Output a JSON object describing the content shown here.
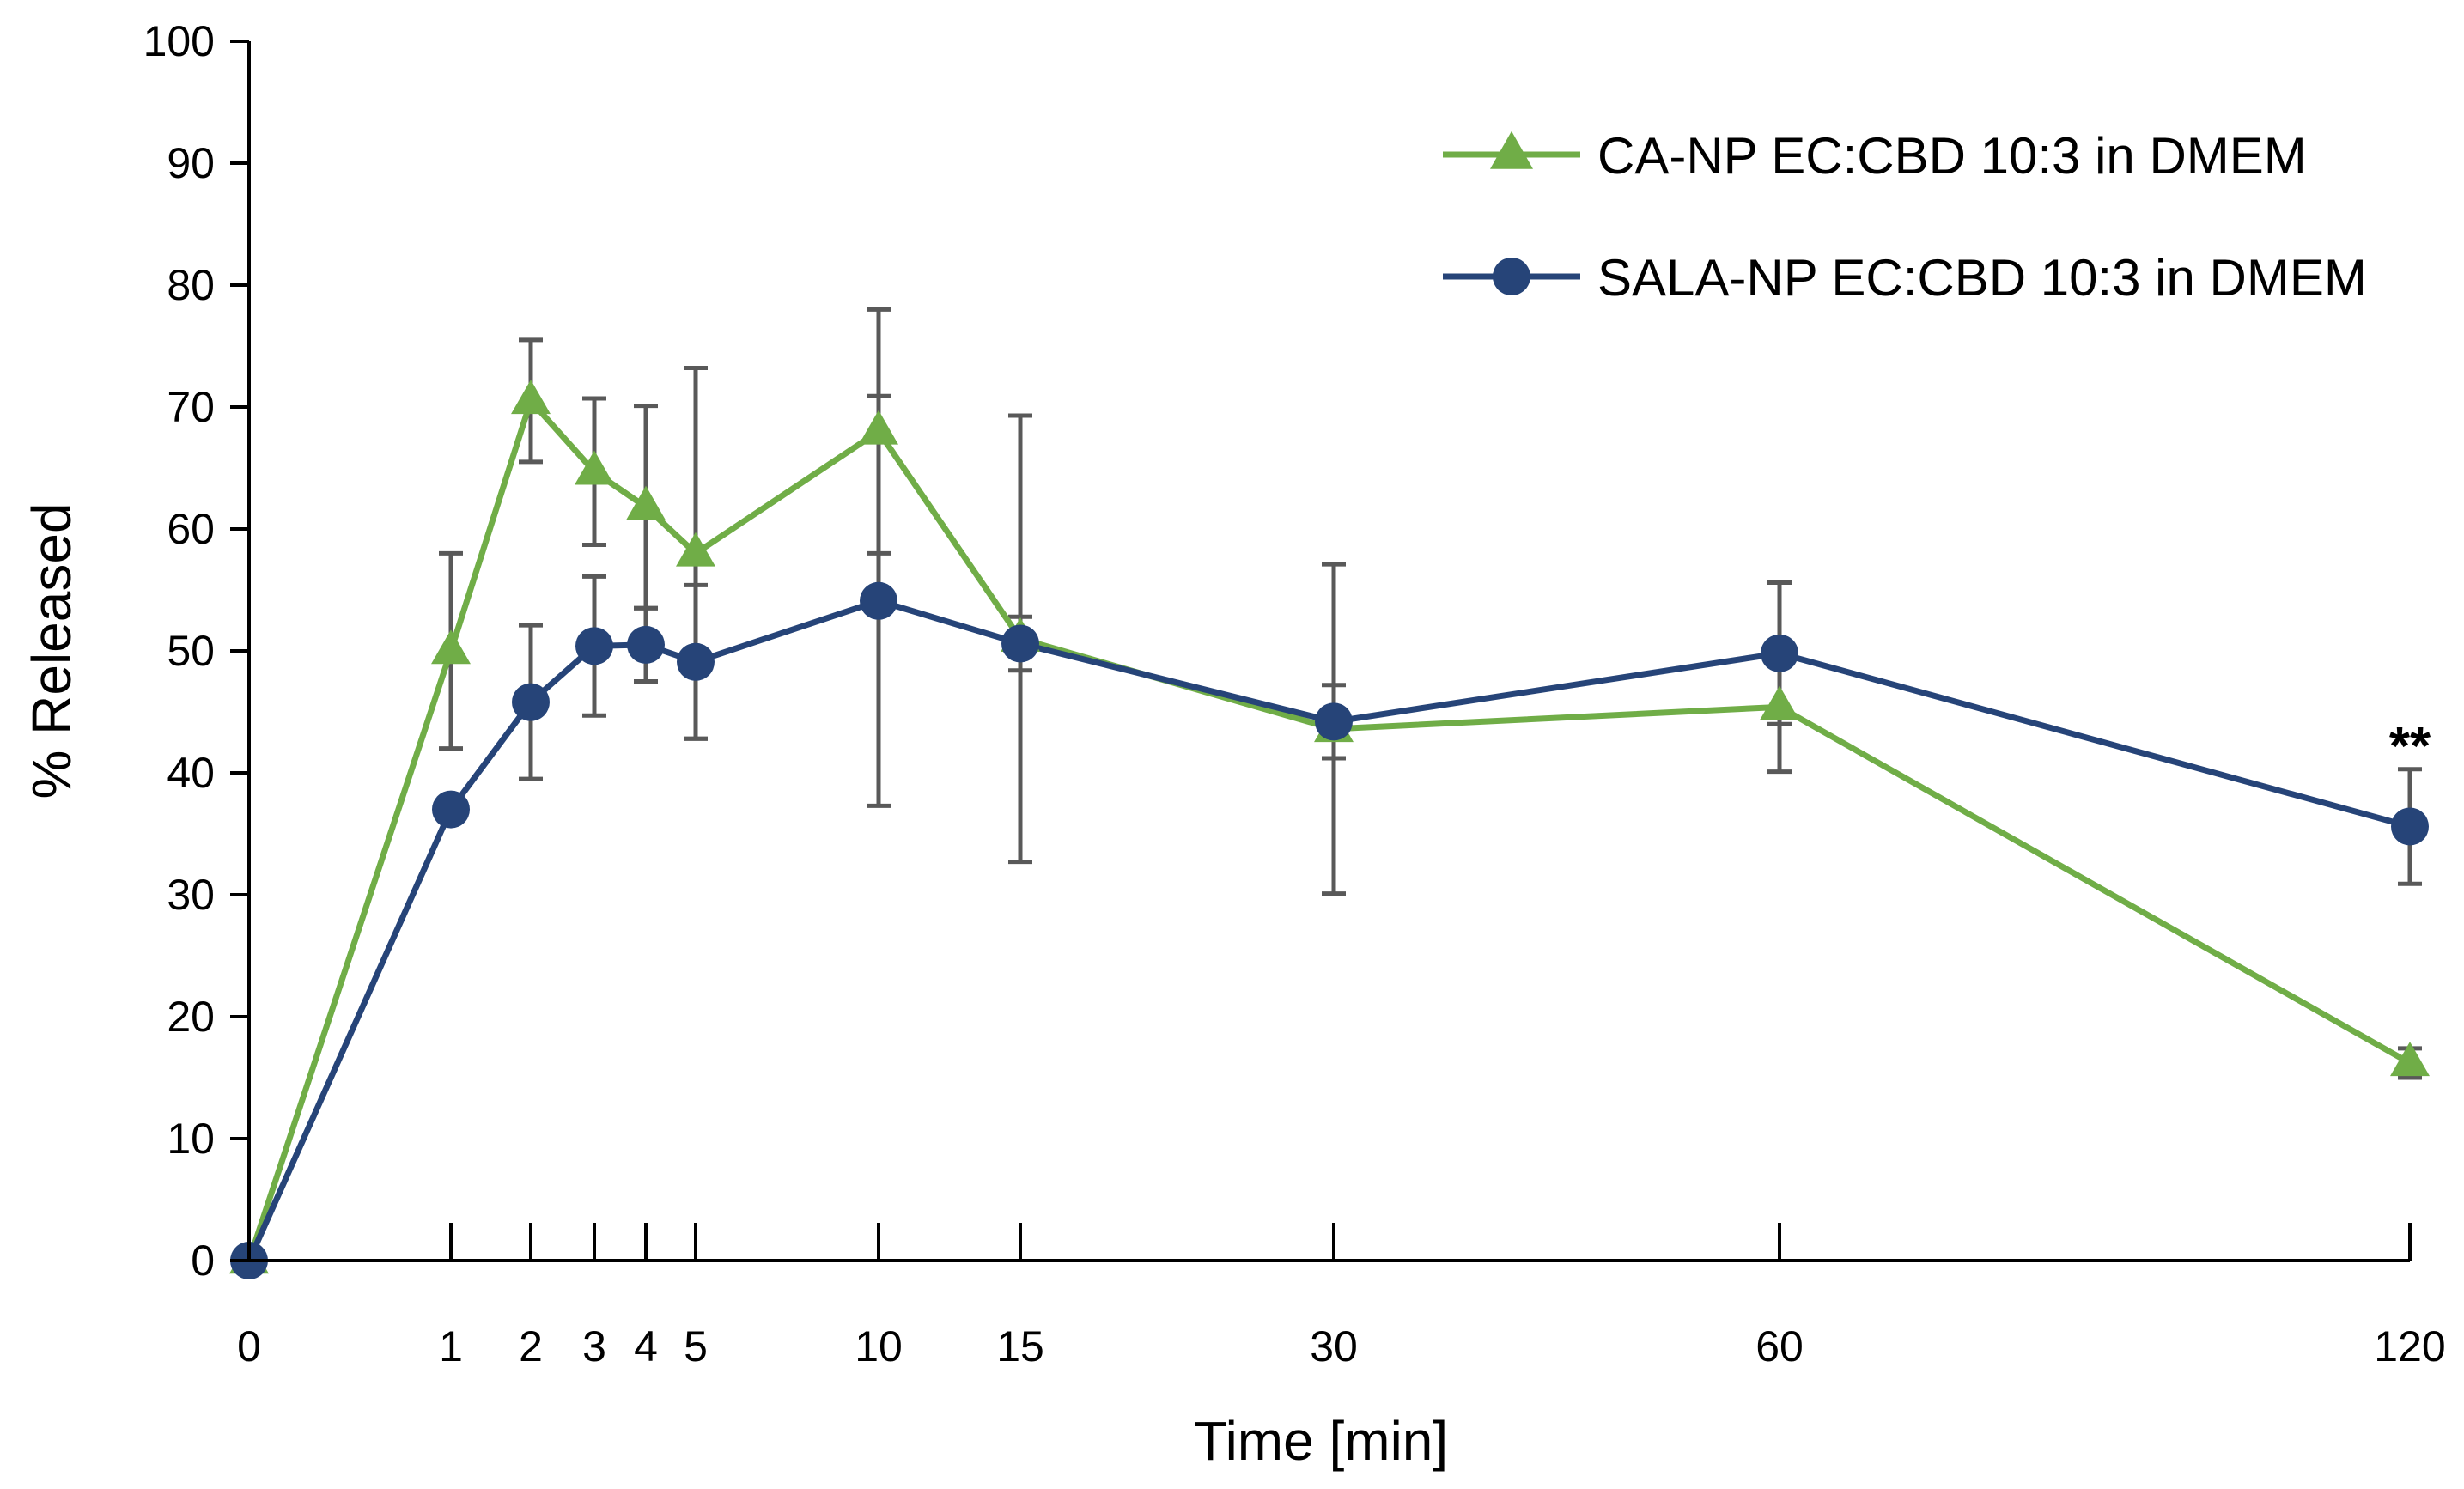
{
  "colors": {
    "ca_np": "#70AD47",
    "sala_np": "#264478",
    "error_bars": "#595959",
    "axis": "#000000"
  },
  "chart_data": {
    "type": "line",
    "title": "",
    "xlabel": "Time [min]",
    "ylabel": "% Released",
    "ylim": [
      0,
      100
    ],
    "yticks": [
      "0",
      "10",
      "20",
      "30",
      "40",
      "50",
      "60",
      "70",
      "80",
      "90",
      "100"
    ],
    "categories": [
      "0",
      "1",
      "2",
      "3",
      "4",
      "5",
      "10",
      "15",
      "30",
      "60",
      "120"
    ],
    "legend_position": "top-right",
    "grid": false,
    "series": [
      {
        "name": "CA-NP EC:CBD 10:3 in DMEM",
        "marker": "triangle",
        "color": "#70AD47",
        "values": [
          0,
          50,
          70.5,
          64.7,
          61.8,
          58,
          68,
          51,
          43.6,
          45.4,
          16.2
        ],
        "errors": [
          0,
          8,
          5,
          6,
          8.3,
          15.2,
          10,
          18.3,
          13.5,
          5.3,
          1.2
        ]
      },
      {
        "name": "SALA-NP EC:CBD 10:3 in DMEM",
        "marker": "circle",
        "color": "#264478",
        "values": [
          0,
          37,
          45.8,
          50.4,
          50.5,
          49.1,
          54.1,
          50.6,
          44.2,
          49.8,
          35.6
        ],
        "errors": [
          0,
          0,
          6.3,
          5.7,
          3,
          6.3,
          16.8,
          2.2,
          3,
          5.8,
          4.7
        ]
      }
    ],
    "annotations": [
      {
        "x": "120",
        "text": "**"
      }
    ]
  }
}
